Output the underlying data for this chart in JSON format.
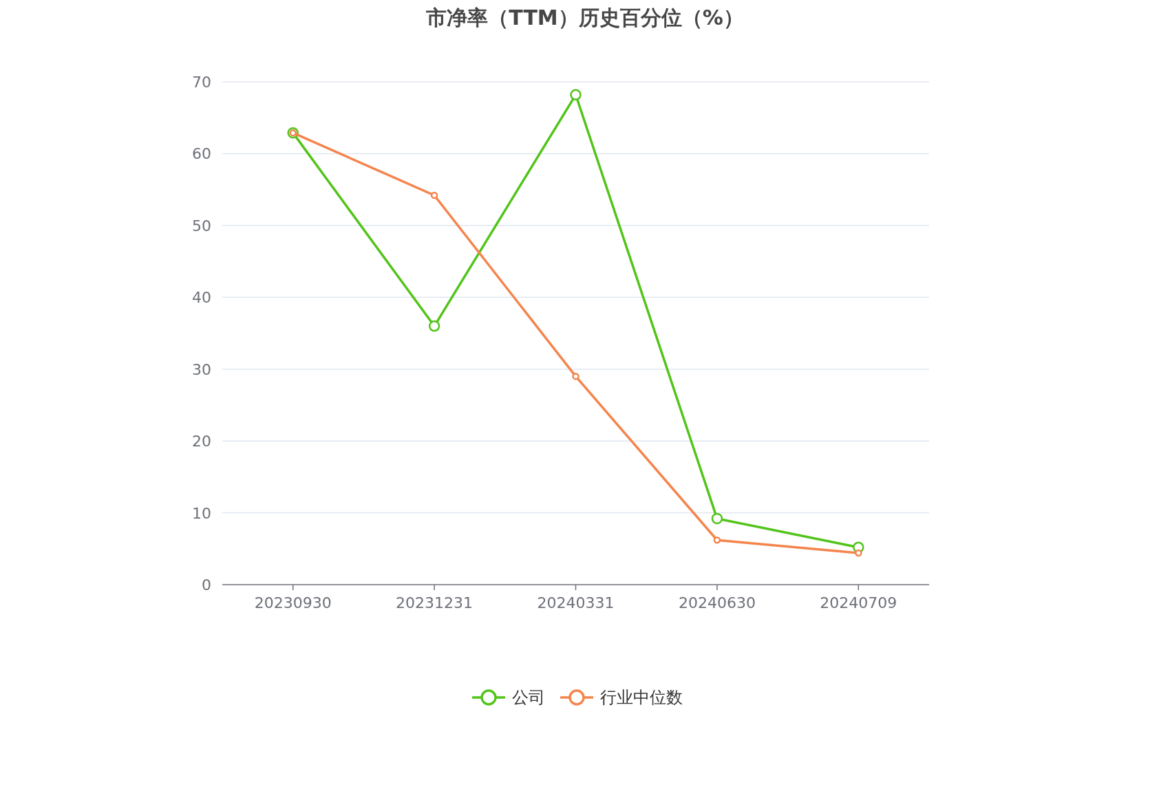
{
  "chart_data": {
    "type": "line",
    "title": "市净率（TTM）历史百分位（%）",
    "categories": [
      "20230930",
      "20231231",
      "20240331",
      "20240630",
      "20240709"
    ],
    "series": [
      {
        "name": "公司",
        "color": "#52c41a",
        "values": [
          62.9,
          36.0,
          68.2,
          9.2,
          5.2
        ]
      },
      {
        "name": "行业中位数",
        "color": "#f5844c",
        "values": [
          62.9,
          54.2,
          29.0,
          6.2,
          4.4
        ]
      }
    ],
    "ylim": [
      0,
      70
    ],
    "yticks": [
      0,
      10,
      20,
      30,
      40,
      50,
      60,
      70
    ],
    "grid": "y",
    "legend": "bottom",
    "marker": "circle"
  }
}
